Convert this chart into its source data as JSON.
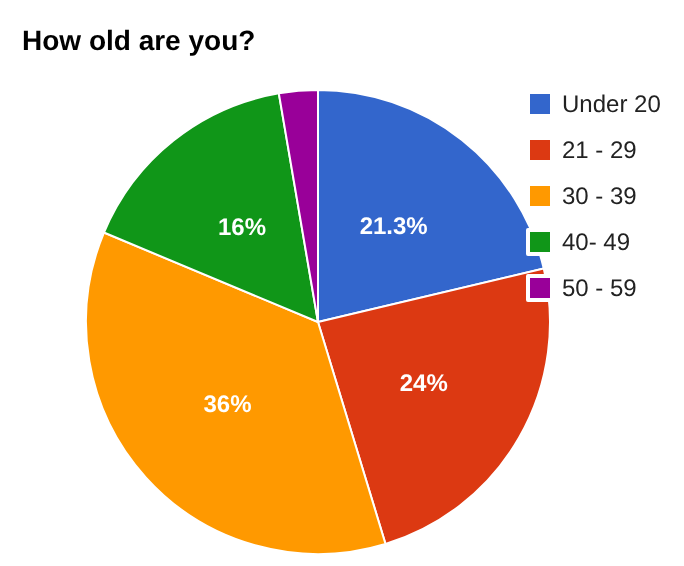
{
  "chart_data": {
    "type": "pie",
    "title": "How old are you?",
    "categories": [
      "Under 20",
      "21 - 29",
      "30 - 39",
      "40- 49",
      "50 - 59"
    ],
    "values": [
      21.3,
      24,
      36,
      16,
      2.7
    ],
    "colors": [
      "#3366cc",
      "#dc3912",
      "#ff9900",
      "#109618",
      "#990099"
    ],
    "value_labels": [
      "21.3%",
      "24%",
      "36%",
      "16%",
      null
    ],
    "legend": "top right"
  }
}
